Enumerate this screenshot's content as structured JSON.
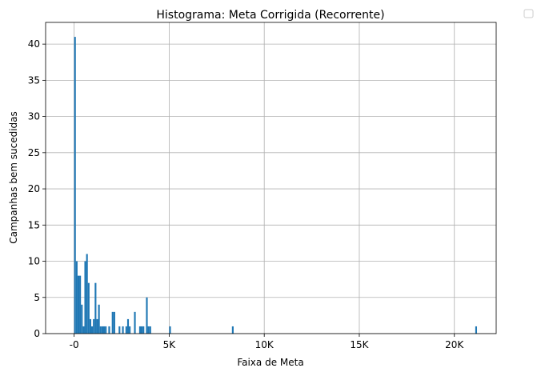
{
  "chart_data": {
    "type": "bar",
    "title": "Histograma: Meta Corrigida (Recorrente)",
    "xlabel": "Faixa de Meta",
    "ylabel": "Campanhas bem sucedidas",
    "xlim": [
      -1500,
      22200
    ],
    "ylim": [
      0,
      43
    ],
    "xticks": [
      {
        "value": 0,
        "label": "-0"
      },
      {
        "value": 5000,
        "label": "5K"
      },
      {
        "value": 10000,
        "label": "10K"
      },
      {
        "value": 15000,
        "label": "15K"
      },
      {
        "value": 20000,
        "label": "20K"
      }
    ],
    "yticks": [
      0,
      5,
      10,
      15,
      20,
      25,
      30,
      35,
      40
    ],
    "grid": true,
    "legend": "top-right, empty",
    "color": "#1f77b4",
    "bar_width": 90,
    "bars": [
      {
        "x": 0,
        "count": 41
      },
      {
        "x": 90,
        "count": 10
      },
      {
        "x": 180,
        "count": 8
      },
      {
        "x": 270,
        "count": 8
      },
      {
        "x": 360,
        "count": 4
      },
      {
        "x": 450,
        "count": 1
      },
      {
        "x": 540,
        "count": 10
      },
      {
        "x": 630,
        "count": 11
      },
      {
        "x": 720,
        "count": 7
      },
      {
        "x": 810,
        "count": 2
      },
      {
        "x": 900,
        "count": 1
      },
      {
        "x": 990,
        "count": 2
      },
      {
        "x": 1080,
        "count": 7
      },
      {
        "x": 1170,
        "count": 2
      },
      {
        "x": 1260,
        "count": 4
      },
      {
        "x": 1350,
        "count": 1
      },
      {
        "x": 1440,
        "count": 1
      },
      {
        "x": 1530,
        "count": 1
      },
      {
        "x": 1620,
        "count": 1
      },
      {
        "x": 1800,
        "count": 1
      },
      {
        "x": 1980,
        "count": 3
      },
      {
        "x": 2070,
        "count": 3
      },
      {
        "x": 2340,
        "count": 1
      },
      {
        "x": 2520,
        "count": 1
      },
      {
        "x": 2700,
        "count": 1
      },
      {
        "x": 2790,
        "count": 2
      },
      {
        "x": 2880,
        "count": 1
      },
      {
        "x": 3150,
        "count": 3
      },
      {
        "x": 3420,
        "count": 1
      },
      {
        "x": 3510,
        "count": 1
      },
      {
        "x": 3600,
        "count": 1
      },
      {
        "x": 3780,
        "count": 5
      },
      {
        "x": 3870,
        "count": 1
      },
      {
        "x": 3960,
        "count": 1
      },
      {
        "x": 5000,
        "count": 1
      },
      {
        "x": 8300,
        "count": 1
      },
      {
        "x": 21100,
        "count": 1
      }
    ]
  }
}
